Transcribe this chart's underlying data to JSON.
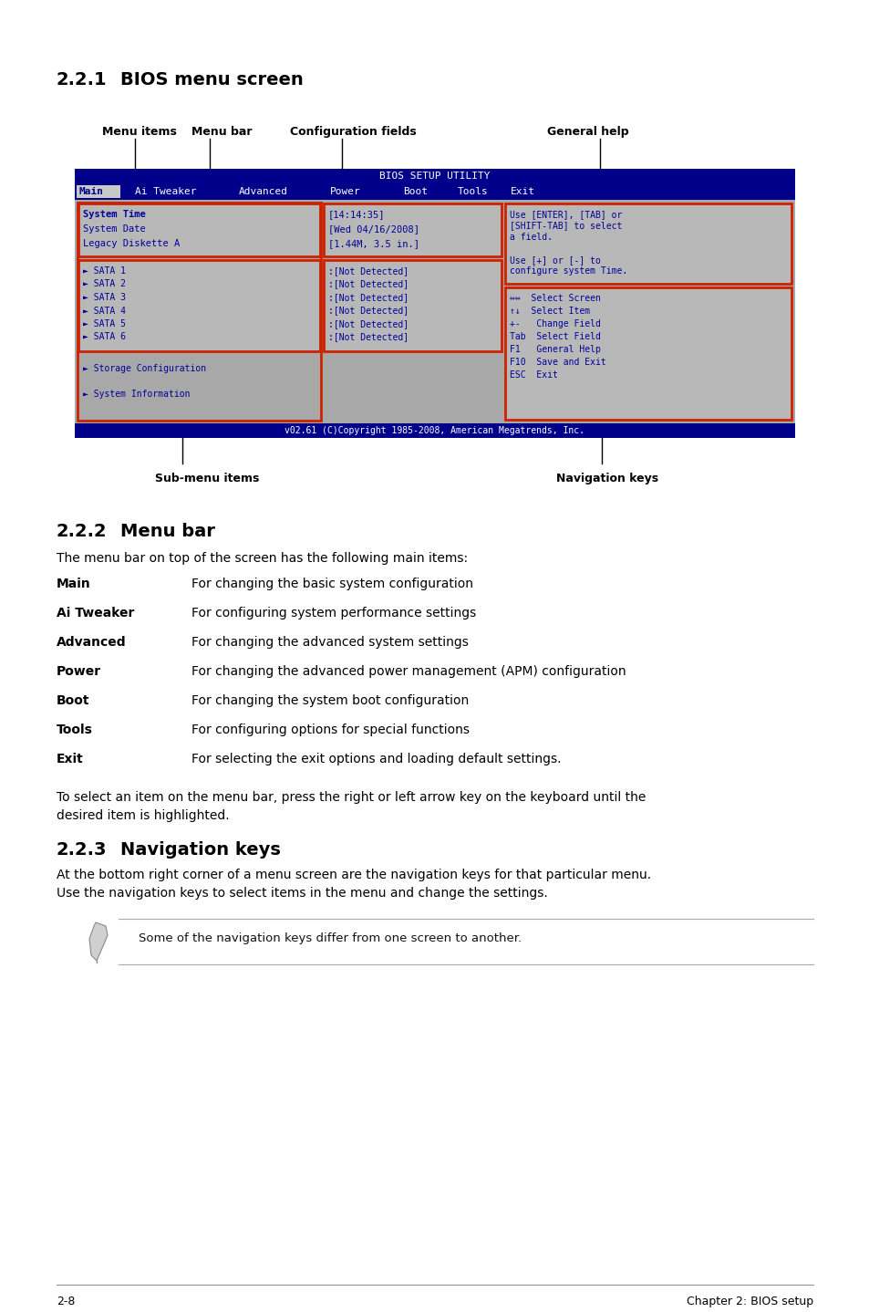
{
  "sec221": "2.2.1",
  "sec221_title": "BIOS menu screen",
  "sec222": "2.2.2",
  "sec222_title": "Menu bar",
  "sec223": "2.2.3",
  "sec223_title": "Navigation keys",
  "lbl_menu_items": "Menu items",
  "lbl_menu_bar": "Menu bar",
  "lbl_config_fields": "Configuration fields",
  "lbl_general_help": "General help",
  "lbl_sub_menu_items": "Sub-menu items",
  "lbl_nav_keys": "Navigation keys",
  "bios_title": "BIOS SETUP UTILITY",
  "bios_menu": [
    "Main",
    "Ai Tweaker",
    "Advanced",
    "Power",
    "Boot",
    "Tools",
    "Exit"
  ],
  "bios_left": [
    "System Time",
    "System Date",
    "Legacy Diskette A"
  ],
  "bios_times": [
    "[14:14:35]",
    "[Wed 04/16/2008]",
    "[1.44M, 3.5 in.]"
  ],
  "bios_sata": [
    "SATA 1",
    "SATA 2",
    "SATA 3",
    "SATA 4",
    "SATA 5",
    "SATA 6"
  ],
  "bios_sata_val": ":[Not Detected]",
  "bios_help": [
    "Use [ENTER], [TAB] or",
    "[SHIFT-TAB] to select",
    "a field.",
    "",
    "Use [+] or [-] to",
    "configure system Time."
  ],
  "bios_nav": [
    "⇔⇔  Select Screen",
    "↑↓  Select Item",
    "+-   Change Field",
    "Tab  Select Field",
    "F1   General Help",
    "F10  Save and Exit",
    "ESC  Exit"
  ],
  "bios_storage": "► Storage Configuration",
  "bios_sysinfo": "► System Information",
  "bios_footer": "v02.61 (C)Copyright 1985-2008, American Megatrends, Inc.",
  "menubar_intro": "The menu bar on top of the screen has the following main items:",
  "menu_items": [
    "Main",
    "Ai Tweaker",
    "Advanced",
    "Power",
    "Boot",
    "Tools",
    "Exit"
  ],
  "menu_descs": [
    "For changing the basic system configuration",
    "For configuring system performance settings",
    "For changing the advanced system settings",
    "For changing the advanced power management (APM) configuration",
    "For changing the system boot configuration",
    "For configuring options for special functions",
    "For selecting the exit options and loading default settings."
  ],
  "menubar_note_line1": "To select an item on the menu bar, press the right or left arrow key on the keyboard until the",
  "menubar_note_line2": "desired item is highlighted.",
  "nav_desc_line1": "At the bottom right corner of a menu screen are the navigation keys for that particular menu.",
  "nav_desc_line2": "Use the navigation keys to select items in the menu and change the settings.",
  "nav_note": "Some of the navigation keys differ from one screen to another.",
  "footer_left": "2-8",
  "footer_right": "Chapter 2: BIOS setup",
  "DARK_BLUE": "#00008b",
  "GRAY_BG": "#a8a8a8",
  "PANEL_BG": "#b8b8b8",
  "RED": "#cc2200",
  "BIOS_TEXT": "#000099",
  "WHITE": "#ffffff",
  "BLACK": "#000000"
}
